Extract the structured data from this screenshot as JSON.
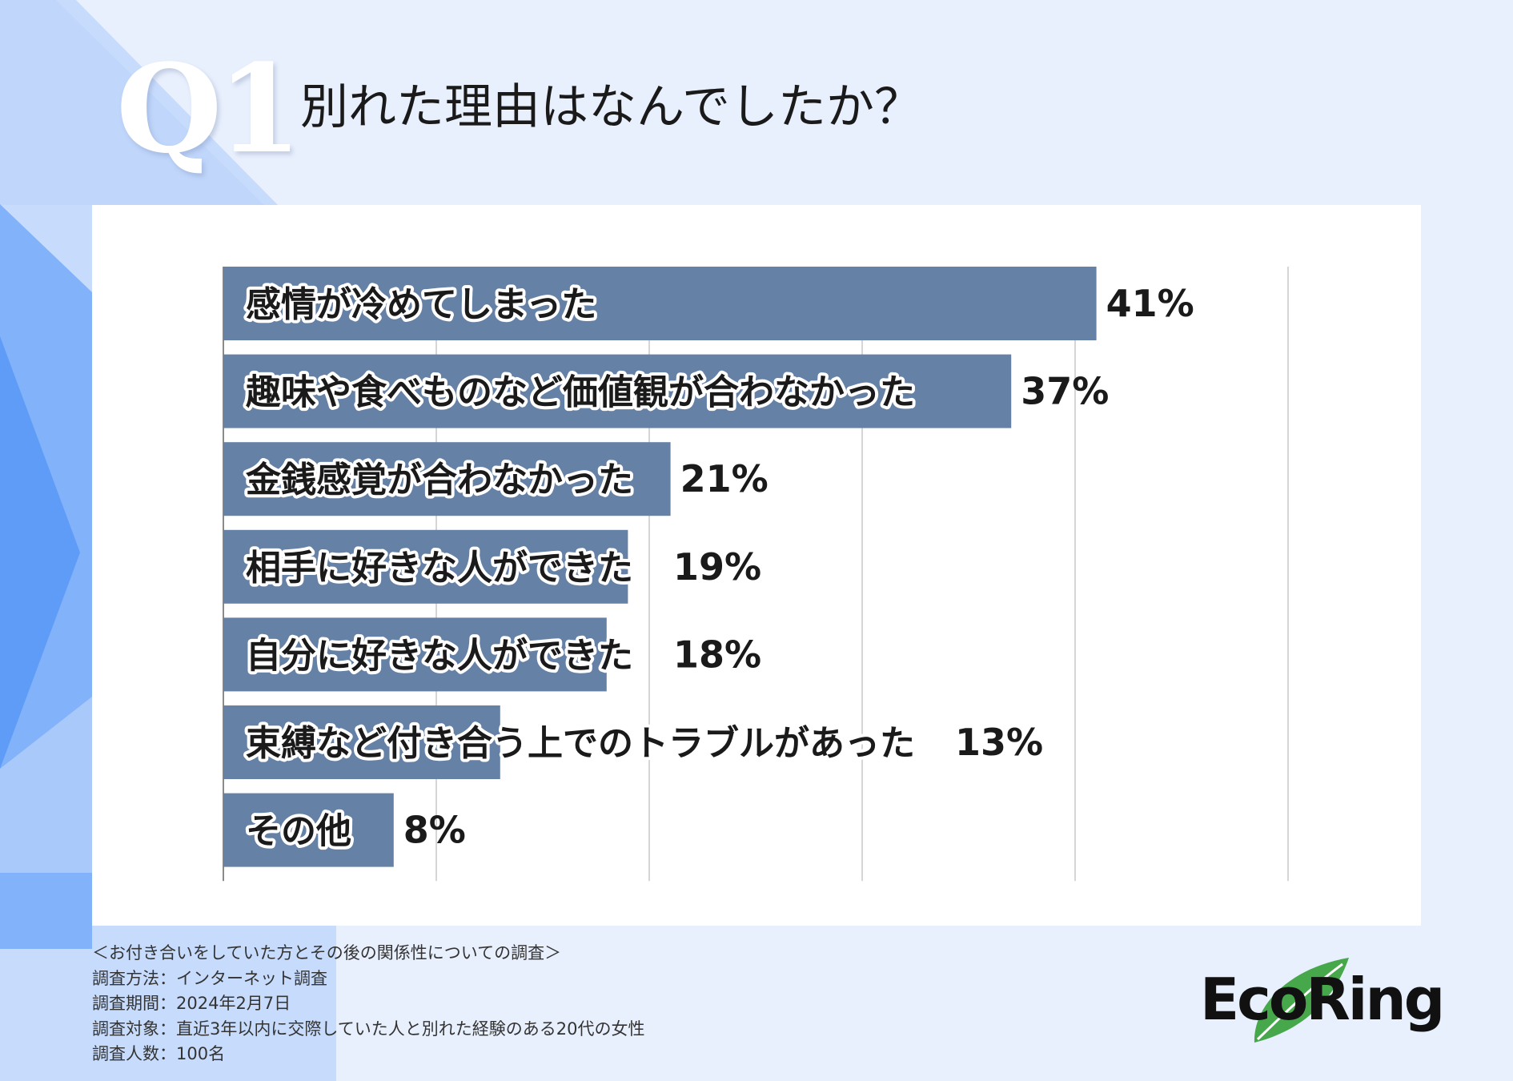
{
  "header": {
    "question_number": "Q1",
    "title": "別れた理由はなんでしたか？"
  },
  "chart_data": {
    "type": "bar",
    "orientation": "horizontal",
    "categories": [
      "感情が冷めてしまった",
      "趣味や食べものなど価値観が合わなかった",
      "金銭感覚が合わなかった",
      "相手に好きな人ができた",
      "自分に好きな人ができた",
      "束縛など付き合う上でのトラブルがあった",
      "その他"
    ],
    "values": [
      41,
      37,
      21,
      19,
      18,
      13,
      8
    ],
    "value_labels": [
      "41%",
      "37%",
      "21%",
      "19%",
      "18%",
      "13%",
      "8%"
    ],
    "xlim": [
      0,
      50
    ],
    "grid": true,
    "bar_color": "#6681a6"
  },
  "footnote": {
    "lines": [
      "＜お付き合いをしていた方とその後の関係性についての調査＞",
      "調査方法：インターネット調査",
      "調査期間：2024年2月7日",
      "調査対象：直近3年以内に交際していた人と別れた経験のある20代の女性",
      "調査人数：100名"
    ]
  },
  "logo": {
    "text": "EcoRing",
    "leaf_color": "#46a84a"
  },
  "colors": {
    "background": "#e9f0fd",
    "accent_blue": "#5b9cf8",
    "panel": "#ffffff"
  }
}
